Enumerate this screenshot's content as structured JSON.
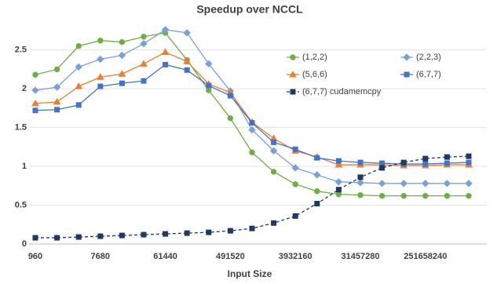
{
  "chart_data": {
    "type": "line",
    "title": "Speedup over NCCL",
    "x_label": "Input Size",
    "categories": [
      960,
      null,
      null,
      7680,
      null,
      null,
      61440,
      null,
      null,
      491520,
      null,
      null,
      3932160,
      null,
      null,
      31457280,
      null,
      null,
      251658240,
      null,
      null
    ],
    "ylim": [
      0,
      2.9
    ],
    "yticks": [
      0,
      0.5,
      1,
      1.5,
      2,
      2.5
    ],
    "grid": true,
    "legend": "top-right",
    "series": [
      {
        "name": "(1,2,2)",
        "color": "#70ad47",
        "marker": "circle",
        "values": [
          2.18,
          2.25,
          2.55,
          2.62,
          2.6,
          2.67,
          2.72,
          2.37,
          1.98,
          1.62,
          1.18,
          0.93,
          0.77,
          0.68,
          0.64,
          0.63,
          0.62,
          0.62,
          0.62,
          0.62,
          0.62
        ]
      },
      {
        "name": "(2,2,3)",
        "color": "#7ba0d8",
        "marker": "diamond",
        "values": [
          1.98,
          2.02,
          2.28,
          2.38,
          2.43,
          2.58,
          2.76,
          2.72,
          2.32,
          1.97,
          1.47,
          1.2,
          0.98,
          0.89,
          0.8,
          0.79,
          0.78,
          0.78,
          0.78,
          0.78,
          0.78
        ]
      },
      {
        "name": "(5,6,6)",
        "color": "#ed7d31",
        "marker": "triangle",
        "values": [
          1.81,
          1.83,
          2.03,
          2.15,
          2.19,
          2.32,
          2.47,
          2.35,
          2.06,
          1.95,
          1.57,
          1.36,
          1.2,
          1.12,
          1.02,
          1.02,
          1.02,
          1.01,
          1.01,
          1.02,
          1.02
        ]
      },
      {
        "name": "(6,7,7)",
        "color": "#4472c4",
        "marker": "square",
        "values": [
          1.72,
          1.73,
          1.79,
          2.03,
          2.07,
          2.1,
          2.31,
          2.24,
          2.04,
          1.91,
          1.56,
          1.31,
          1.22,
          1.11,
          1.07,
          1.05,
          1.04,
          1.03,
          1.03,
          1.04,
          1.05
        ]
      },
      {
        "name": "(6,7,7) cudamemcpy",
        "color": "#1f3864",
        "marker": "square",
        "dashed": true,
        "values": [
          0.08,
          0.08,
          0.09,
          0.1,
          0.11,
          0.12,
          0.13,
          0.14,
          0.15,
          0.17,
          0.2,
          0.27,
          0.36,
          0.52,
          0.7,
          0.86,
          0.98,
          1.05,
          1.1,
          1.12,
          1.13
        ]
      }
    ]
  }
}
